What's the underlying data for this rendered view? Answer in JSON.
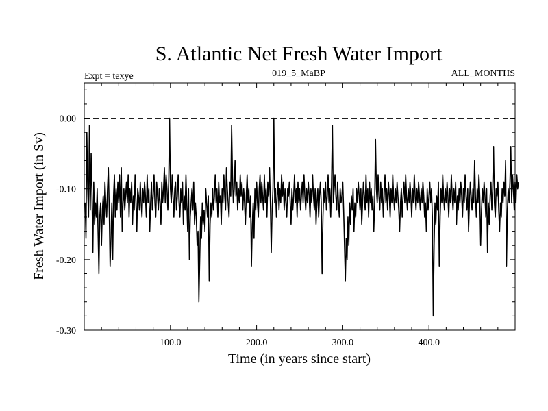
{
  "chart_data": {
    "type": "line",
    "title": "S. Atlantic Net Fresh Water Import",
    "header_left": "Expt = texye",
    "header_center": "019_5_MaBP",
    "header_right": "ALL_MONTHS",
    "xlabel": "Time (in years since start)",
    "ylabel": "Fresh Water Import (in Sv)",
    "xlim": [
      0,
      500
    ],
    "ylim": [
      -0.3,
      0.05
    ],
    "x_ticks": [
      100,
      200,
      300,
      400
    ],
    "x_tick_labels": [
      "100.0",
      "200.0",
      "300.0",
      "400.0"
    ],
    "y_ticks": [
      -0.3,
      -0.2,
      -0.1,
      0.0
    ],
    "y_tick_labels": [
      "-0.30",
      "-0.20",
      "-0.10",
      "0.00"
    ],
    "reference_line": {
      "y": 0.0,
      "style": "dashed"
    },
    "grid": false,
    "line_color": "#000000",
    "series": [
      {
        "x_start": 1,
        "x_step": 1,
        "values": [
          -0.12,
          -0.17,
          -0.02,
          -0.1,
          -0.14,
          -0.01,
          -0.13,
          -0.05,
          -0.11,
          -0.19,
          -0.09,
          -0.15,
          -0.12,
          -0.14,
          -0.1,
          -0.16,
          -0.22,
          -0.14,
          -0.12,
          -0.18,
          -0.13,
          -0.11,
          -0.15,
          -0.09,
          -0.12,
          -0.14,
          -0.1,
          -0.07,
          -0.13,
          -0.21,
          -0.17,
          -0.12,
          -0.2,
          -0.11,
          -0.08,
          -0.14,
          -0.1,
          -0.13,
          -0.09,
          -0.12,
          -0.08,
          -0.14,
          -0.07,
          -0.16,
          -0.12,
          -0.1,
          -0.13,
          -0.11,
          -0.09,
          -0.12,
          -0.08,
          -0.14,
          -0.1,
          -0.12,
          -0.09,
          -0.15,
          -0.11,
          -0.13,
          -0.08,
          -0.12,
          -0.16,
          -0.1,
          -0.11,
          -0.13,
          -0.09,
          -0.12,
          -0.14,
          -0.1,
          -0.12,
          -0.09,
          -0.11,
          -0.14,
          -0.08,
          -0.12,
          -0.1,
          -0.16,
          -0.12,
          -0.09,
          -0.13,
          -0.11,
          -0.08,
          -0.12,
          -0.14,
          -0.09,
          -0.11,
          -0.13,
          -0.1,
          -0.12,
          -0.15,
          -0.09,
          -0.12,
          -0.1,
          -0.07,
          -0.12,
          -0.08,
          -0.1,
          -0.13,
          -0.09,
          0.0,
          -0.1,
          -0.12,
          -0.08,
          -0.11,
          -0.14,
          -0.1,
          -0.09,
          -0.13,
          -0.11,
          -0.08,
          -0.12,
          -0.14,
          -0.1,
          -0.12,
          -0.09,
          -0.15,
          -0.11,
          -0.13,
          -0.08,
          -0.12,
          -0.16,
          -0.1,
          -0.2,
          -0.14,
          -0.12,
          -0.1,
          -0.13,
          -0.09,
          -0.15,
          -0.12,
          -0.14,
          -0.18,
          -0.16,
          -0.26,
          -0.2,
          -0.14,
          -0.17,
          -0.12,
          -0.15,
          -0.13,
          -0.16,
          -0.1,
          -0.12,
          -0.14,
          -0.11,
          -0.23,
          -0.15,
          -0.12,
          -0.14,
          -0.1,
          -0.13,
          -0.11,
          -0.08,
          -0.12,
          -0.1,
          -0.14,
          -0.09,
          -0.12,
          -0.11,
          -0.15,
          -0.1,
          -0.12,
          -0.08,
          -0.11,
          -0.13,
          -0.07,
          -0.1,
          -0.12,
          -0.14,
          -0.09,
          -0.11,
          -0.01,
          -0.08,
          -0.12,
          -0.1,
          -0.06,
          -0.11,
          -0.09,
          -0.13,
          -0.1,
          -0.12,
          -0.08,
          -0.11,
          -0.09,
          -0.13,
          -0.1,
          -0.12,
          -0.15,
          -0.11,
          -0.08,
          -0.12,
          -0.1,
          -0.14,
          -0.11,
          -0.21,
          -0.15,
          -0.12,
          -0.17,
          -0.1,
          -0.13,
          -0.09,
          -0.12,
          -0.14,
          -0.1,
          -0.08,
          -0.12,
          -0.09,
          -0.11,
          -0.13,
          -0.08,
          -0.12,
          -0.1,
          -0.14,
          -0.09,
          -0.11,
          -0.07,
          -0.12,
          -0.19,
          -0.13,
          -0.1,
          0.0,
          -0.12,
          -0.1,
          -0.14,
          -0.11,
          -0.09,
          -0.13,
          -0.1,
          -0.12,
          -0.08,
          -0.11,
          -0.09,
          -0.13,
          -0.1,
          -0.12,
          -0.14,
          -0.1,
          -0.11,
          -0.09,
          -0.12,
          -0.15,
          -0.1,
          -0.13,
          -0.11,
          -0.08,
          -0.12,
          -0.1,
          -0.14,
          -0.09,
          -0.12,
          -0.1,
          -0.13,
          -0.11,
          -0.09,
          -0.12,
          -0.08,
          -0.11,
          -0.13,
          -0.1,
          -0.12,
          -0.09,
          -0.11,
          -0.14,
          -0.1,
          -0.12,
          -0.08,
          -0.11,
          -0.13,
          -0.1,
          -0.15,
          -0.12,
          -0.1,
          -0.14,
          -0.11,
          -0.09,
          -0.12,
          -0.22,
          -0.14,
          -0.1,
          -0.12,
          -0.09,
          -0.13,
          -0.11,
          -0.08,
          -0.12,
          -0.1,
          -0.14,
          -0.09,
          -0.01,
          -0.12,
          -0.1,
          -0.08,
          -0.11,
          -0.13,
          -0.09,
          -0.12,
          -0.14,
          -0.1,
          -0.12,
          -0.11,
          -0.09,
          -0.13,
          -0.18,
          -0.23,
          -0.17,
          -0.2,
          -0.14,
          -0.18,
          -0.12,
          -0.15,
          -0.11,
          -0.13,
          -0.1,
          -0.16,
          -0.12,
          -0.14,
          -0.1,
          -0.12,
          -0.09,
          -0.11,
          -0.13,
          -0.1,
          -0.15,
          -0.12,
          -0.09,
          -0.11,
          -0.13,
          -0.08,
          -0.12,
          -0.1,
          -0.14,
          -0.09,
          -0.12,
          -0.1,
          -0.13,
          -0.11,
          -0.16,
          -0.12,
          -0.03,
          -0.1,
          -0.12,
          -0.08,
          -0.11,
          -0.13,
          -0.09,
          -0.12,
          -0.1,
          -0.14,
          -0.11,
          -0.08,
          -0.12,
          -0.1,
          -0.13,
          -0.09,
          -0.11,
          -0.14,
          -0.1,
          -0.12,
          -0.08,
          -0.11,
          -0.13,
          -0.1,
          -0.12,
          -0.09,
          -0.11,
          -0.13,
          -0.16,
          -0.12,
          -0.1,
          -0.14,
          -0.11,
          -0.09,
          -0.12,
          -0.08,
          -0.11,
          -0.13,
          -0.1,
          -0.12,
          -0.09,
          -0.11,
          -0.14,
          -0.1,
          -0.12,
          -0.08,
          -0.11,
          -0.13,
          -0.1,
          -0.12,
          -0.09,
          -0.11,
          -0.13,
          -0.1,
          -0.12,
          -0.09,
          -0.11,
          -0.14,
          -0.12,
          -0.16,
          -0.1,
          -0.13,
          -0.11,
          -0.09,
          -0.12,
          -0.1,
          -0.14,
          -0.28,
          -0.18,
          -0.12,
          -0.15,
          -0.11,
          -0.13,
          -0.09,
          -0.21,
          -0.14,
          -0.1,
          -0.12,
          -0.08,
          -0.11,
          -0.13,
          -0.1,
          -0.12,
          -0.09,
          -0.11,
          -0.14,
          -0.1,
          -0.12,
          -0.08,
          -0.11,
          -0.13,
          -0.1,
          -0.12,
          -0.09,
          -0.15,
          -0.11,
          -0.13,
          -0.1,
          -0.12,
          -0.09,
          -0.11,
          -0.14,
          -0.1,
          -0.12,
          -0.08,
          -0.11,
          -0.13,
          -0.1,
          -0.16,
          -0.12,
          -0.09,
          -0.11,
          -0.13,
          -0.1,
          -0.12,
          -0.06,
          -0.11,
          -0.14,
          -0.1,
          -0.12,
          -0.08,
          -0.11,
          -0.18,
          -0.13,
          -0.1,
          -0.12,
          -0.09,
          -0.11,
          -0.14,
          -0.1,
          -0.19,
          -0.12,
          -0.15,
          -0.11,
          -0.09,
          -0.13,
          -0.1,
          -0.04,
          -0.12,
          -0.14,
          -0.1,
          -0.11,
          -0.09,
          -0.13,
          -0.16,
          -0.12,
          -0.14,
          -0.1,
          -0.12,
          -0.09,
          -0.11,
          -0.06,
          -0.21,
          -0.13,
          -0.1,
          -0.12,
          -0.09,
          -0.04,
          -0.12,
          -0.08,
          -0.1,
          -0.13,
          -0.09,
          -0.12,
          -0.08,
          -0.1,
          -0.09
        ]
      }
    ]
  }
}
